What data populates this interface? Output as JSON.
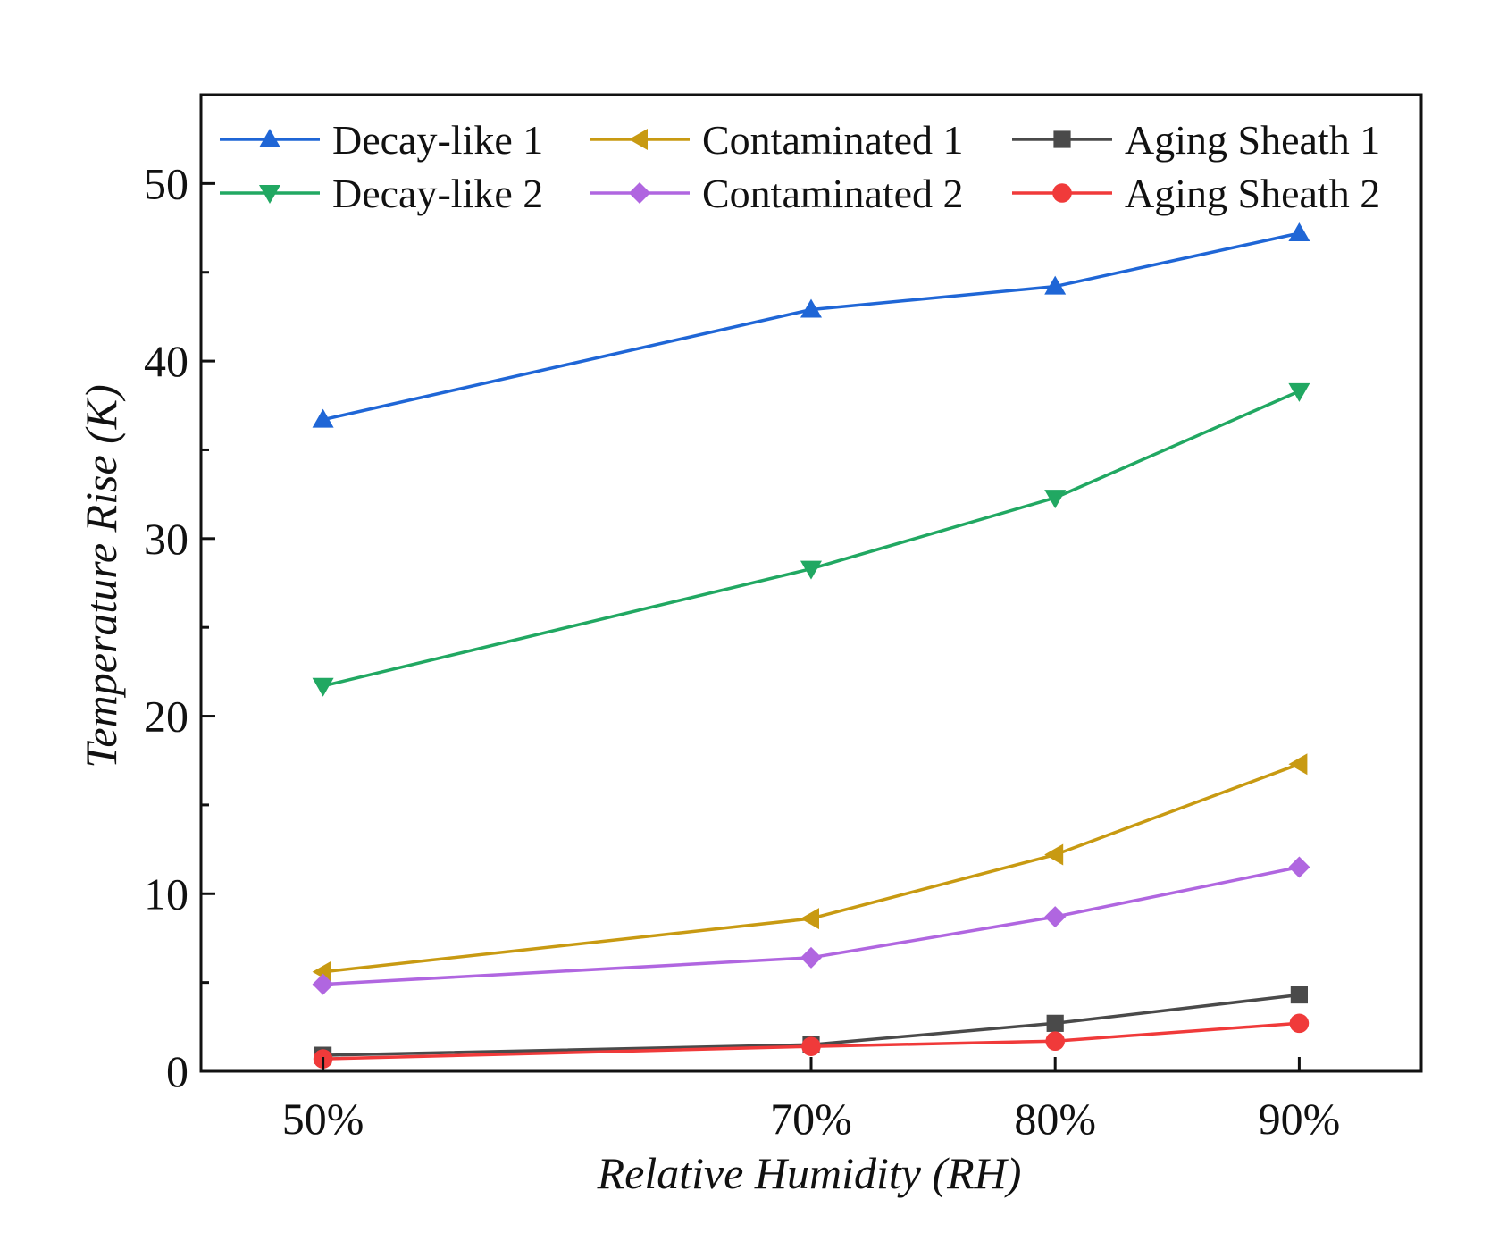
{
  "chart_data": {
    "type": "line",
    "title": "",
    "xlabel": "Relative Humidity (RH)",
    "ylabel": "Temperature Rise (K)",
    "categories": [
      "50%",
      "70%",
      "80%",
      "90%"
    ],
    "x": [
      50,
      70,
      80,
      90
    ],
    "xlim": [
      45,
      95
    ],
    "ylim": [
      0,
      55
    ],
    "yticks": [
      0,
      10,
      20,
      30,
      40,
      50
    ],
    "grid": false,
    "legend_position": "top",
    "series": [
      {
        "name": "Decay-like 1",
        "values": [
          36.7,
          42.9,
          44.2,
          47.2
        ],
        "color": "#1f66d6",
        "marker": "triangle-up"
      },
      {
        "name": "Decay-like 2",
        "values": [
          21.7,
          28.3,
          32.3,
          38.3
        ],
        "color": "#21a862",
        "marker": "triangle-down"
      },
      {
        "name": "Contaminated 1",
        "values": [
          5.6,
          8.6,
          12.2,
          17.3
        ],
        "color": "#c89a12",
        "marker": "triangle-left"
      },
      {
        "name": "Contaminated 2",
        "values": [
          4.9,
          6.4,
          8.7,
          11.5
        ],
        "color": "#b066e0",
        "marker": "diamond"
      },
      {
        "name": "Aging Sheath 1",
        "values": [
          0.9,
          1.5,
          2.7,
          4.3
        ],
        "color": "#4a4a4a",
        "marker": "square"
      },
      {
        "name": "Aging Sheath 2",
        "values": [
          0.7,
          1.4,
          1.7,
          2.7
        ],
        "color": "#f03a3a",
        "marker": "circle"
      }
    ]
  }
}
